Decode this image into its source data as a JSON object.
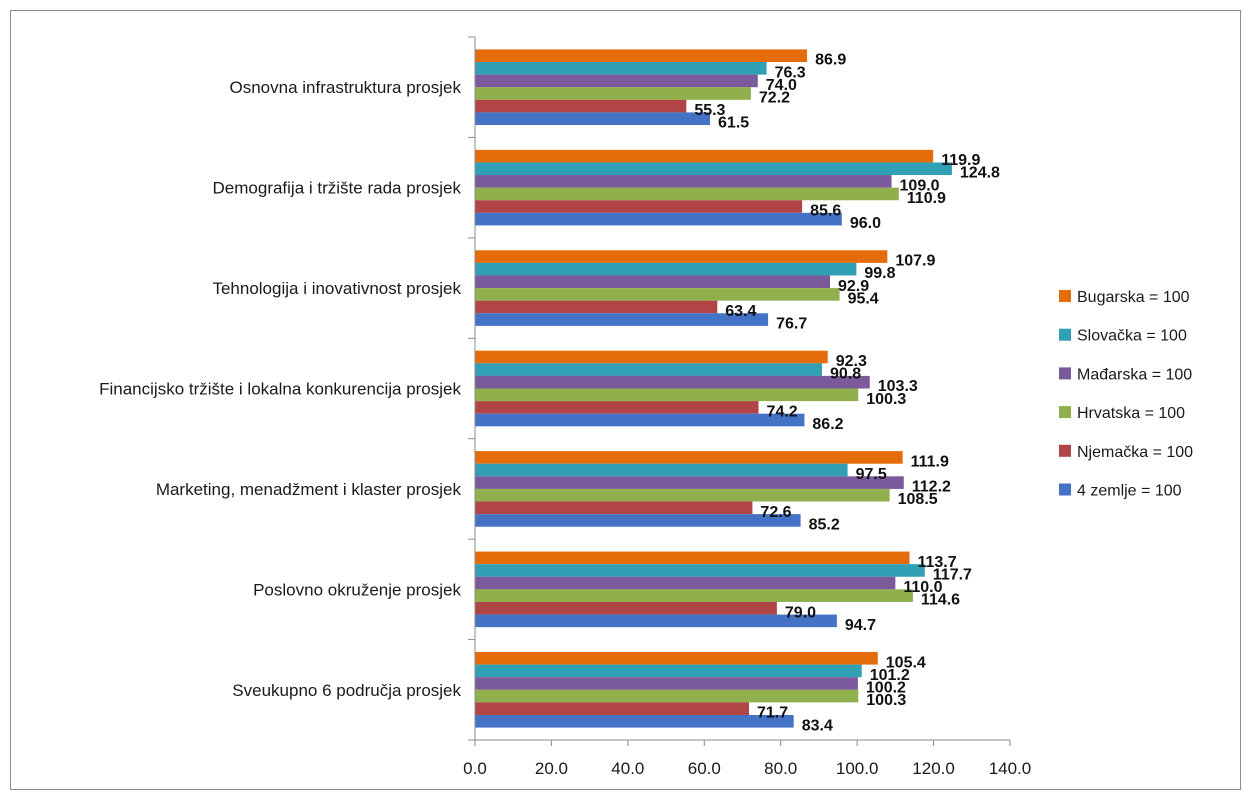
{
  "chart_data": {
    "type": "bar",
    "orientation": "horizontal",
    "categories": [
      "Osnovna infrastruktura prosjek",
      "Demografija i tržište rada prosjek",
      "Tehnologija i inovativnost prosjek",
      "Financijsko tržište i lokalna konkurencija prosjek",
      "Marketing, menadžment i klaster prosjek",
      "Poslovno okruženje prosjek",
      "Sveukupno 6 područja prosjek"
    ],
    "series": [
      {
        "name": "Bugarska = 100",
        "color": "#E46C0A",
        "values": [
          86.9,
          119.9,
          107.9,
          92.3,
          111.9,
          113.7,
          105.4
        ],
        "labels": [
          "86.9",
          "119.9",
          "107.9",
          "92.3",
          "111.9",
          "113.7",
          "105.4"
        ]
      },
      {
        "name": "Slovačka = 100",
        "color": "#31A0B4",
        "values": [
          76.3,
          124.8,
          99.8,
          90.8,
          97.5,
          117.7,
          101.2
        ],
        "labels": [
          "76.3",
          "124.8",
          "99.8",
          "90.8",
          "97.5",
          "117.7",
          "101.2"
        ]
      },
      {
        "name": "Mađarska = 100",
        "color": "#7A5A9A",
        "values": [
          74.0,
          109.0,
          92.9,
          103.3,
          112.2,
          110.0,
          100.2
        ],
        "labels": [
          "74.0",
          "109.0",
          "92.9",
          "103.3",
          "112.2",
          "110.0",
          "100.2"
        ]
      },
      {
        "name": "Hrvatska = 100",
        "color": "#8FB04C",
        "values": [
          72.2,
          110.9,
          95.4,
          100.3,
          108.5,
          114.6,
          100.3
        ],
        "labels": [
          "72.2",
          "110.9",
          "95.4",
          "100.3",
          "108.5",
          "114.6",
          "100.3"
        ]
      },
      {
        "name": "Njemačka = 100",
        "color": "#B14545",
        "values": [
          55.3,
          85.6,
          63.4,
          74.2,
          72.6,
          79.0,
          71.7
        ],
        "labels": [
          "55.3",
          "85.6",
          "63.4",
          "74.2",
          "72.6",
          "79.0",
          "71.7"
        ]
      },
      {
        "name": "4 zemlje = 100",
        "color": "#4472C4",
        "values": [
          61.5,
          96.0,
          76.7,
          86.2,
          85.2,
          94.7,
          83.4
        ],
        "labels": [
          "61.5",
          "96.0",
          "76.7",
          "86.2",
          "85.2",
          "94.7",
          "83.4"
        ]
      }
    ],
    "xlim": [
      0,
      140
    ],
    "xticks": [
      "0.0",
      "20.0",
      "40.0",
      "60.0",
      "80.0",
      "100.0",
      "120.0",
      "140.0"
    ],
    "title": "",
    "xlabel": "",
    "ylabel": "",
    "grid": false,
    "legend_position": "right"
  }
}
